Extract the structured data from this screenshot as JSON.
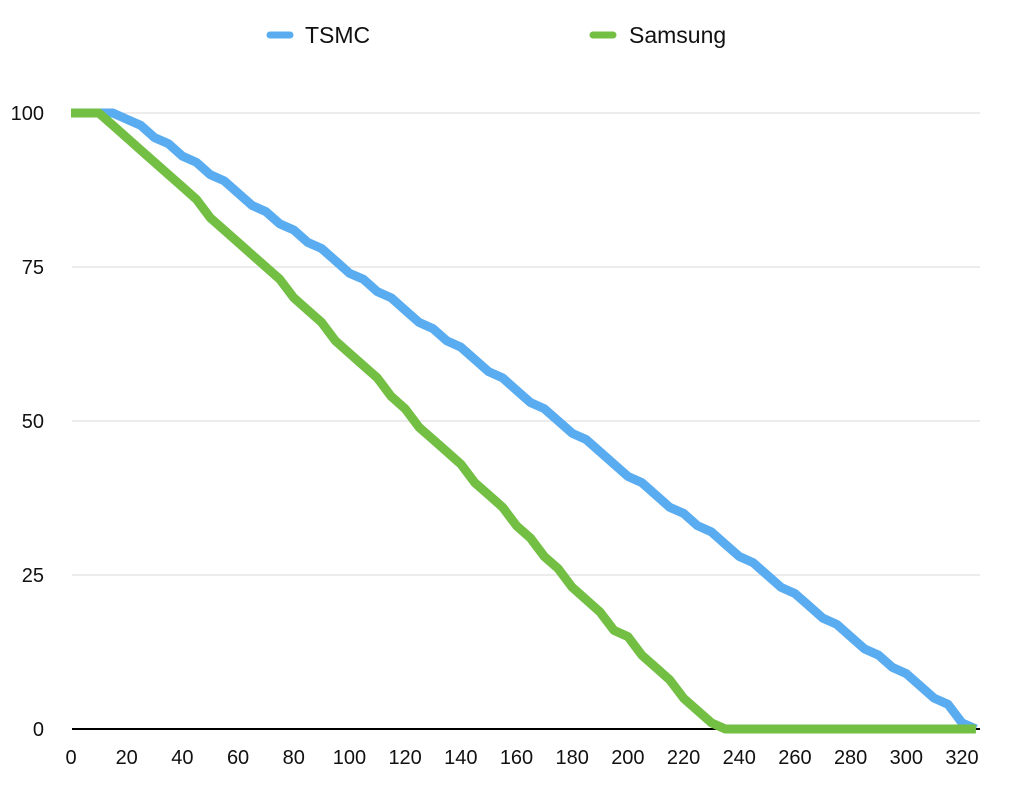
{
  "chart_data": {
    "type": "line",
    "title": "",
    "xlabel": "",
    "ylabel": "",
    "xlim": [
      0,
      325
    ],
    "ylim": [
      0,
      100
    ],
    "x_ticks": [
      0,
      20,
      40,
      60,
      80,
      100,
      120,
      140,
      160,
      180,
      200,
      220,
      240,
      260,
      280,
      300,
      320
    ],
    "y_ticks": [
      0,
      25,
      50,
      75,
      100
    ],
    "grid": "horizontal",
    "legend_position": "top-center",
    "series": [
      {
        "name": "TSMC",
        "color": "#5aacf0",
        "points": [
          [
            0,
            100
          ],
          [
            5,
            100
          ],
          [
            10,
            100
          ],
          [
            15,
            100
          ],
          [
            20,
            99
          ],
          [
            25,
            98
          ],
          [
            30,
            96
          ],
          [
            35,
            95
          ],
          [
            40,
            93
          ],
          [
            45,
            92
          ],
          [
            50,
            90
          ],
          [
            55,
            89
          ],
          [
            60,
            87
          ],
          [
            65,
            85
          ],
          [
            70,
            84
          ],
          [
            75,
            82
          ],
          [
            80,
            81
          ],
          [
            85,
            79
          ],
          [
            90,
            78
          ],
          [
            95,
            76
          ],
          [
            100,
            74
          ],
          [
            105,
            73
          ],
          [
            110,
            71
          ],
          [
            115,
            70
          ],
          [
            120,
            68
          ],
          [
            125,
            66
          ],
          [
            130,
            65
          ],
          [
            135,
            63
          ],
          [
            140,
            62
          ],
          [
            145,
            60
          ],
          [
            150,
            58
          ],
          [
            155,
            57
          ],
          [
            160,
            55
          ],
          [
            165,
            53
          ],
          [
            170,
            52
          ],
          [
            175,
            50
          ],
          [
            180,
            48
          ],
          [
            185,
            47
          ],
          [
            190,
            45
          ],
          [
            195,
            43
          ],
          [
            200,
            41
          ],
          [
            205,
            40
          ],
          [
            210,
            38
          ],
          [
            215,
            36
          ],
          [
            220,
            35
          ],
          [
            225,
            33
          ],
          [
            230,
            32
          ],
          [
            235,
            30
          ],
          [
            240,
            28
          ],
          [
            245,
            27
          ],
          [
            250,
            25
          ],
          [
            255,
            23
          ],
          [
            260,
            22
          ],
          [
            265,
            20
          ],
          [
            270,
            18
          ],
          [
            275,
            17
          ],
          [
            280,
            15
          ],
          [
            285,
            13
          ],
          [
            290,
            12
          ],
          [
            295,
            10
          ],
          [
            300,
            9
          ],
          [
            305,
            7
          ],
          [
            310,
            5
          ],
          [
            315,
            4
          ],
          [
            320,
            1
          ],
          [
            325,
            0
          ]
        ]
      },
      {
        "name": "Samsung",
        "color": "#72bf44",
        "points": [
          [
            0,
            100
          ],
          [
            5,
            100
          ],
          [
            10,
            100
          ],
          [
            15,
            98
          ],
          [
            20,
            96
          ],
          [
            25,
            94
          ],
          [
            30,
            92
          ],
          [
            35,
            90
          ],
          [
            40,
            88
          ],
          [
            45,
            86
          ],
          [
            50,
            83
          ],
          [
            55,
            81
          ],
          [
            60,
            79
          ],
          [
            65,
            77
          ],
          [
            70,
            75
          ],
          [
            75,
            73
          ],
          [
            80,
            70
          ],
          [
            85,
            68
          ],
          [
            90,
            66
          ],
          [
            95,
            63
          ],
          [
            100,
            61
          ],
          [
            105,
            59
          ],
          [
            110,
            57
          ],
          [
            115,
            54
          ],
          [
            120,
            52
          ],
          [
            125,
            49
          ],
          [
            130,
            47
          ],
          [
            135,
            45
          ],
          [
            140,
            43
          ],
          [
            145,
            40
          ],
          [
            150,
            38
          ],
          [
            155,
            36
          ],
          [
            160,
            33
          ],
          [
            165,
            31
          ],
          [
            170,
            28
          ],
          [
            175,
            26
          ],
          [
            180,
            23
          ],
          [
            185,
            21
          ],
          [
            190,
            19
          ],
          [
            195,
            16
          ],
          [
            200,
            15
          ],
          [
            205,
            12
          ],
          [
            210,
            10
          ],
          [
            215,
            8
          ],
          [
            220,
            5
          ],
          [
            225,
            3
          ],
          [
            230,
            1
          ],
          [
            235,
            0
          ],
          [
            240,
            0
          ],
          [
            260,
            0
          ],
          [
            280,
            0
          ],
          [
            300,
            0
          ],
          [
            320,
            0
          ],
          [
            325,
            0
          ]
        ]
      }
    ]
  }
}
